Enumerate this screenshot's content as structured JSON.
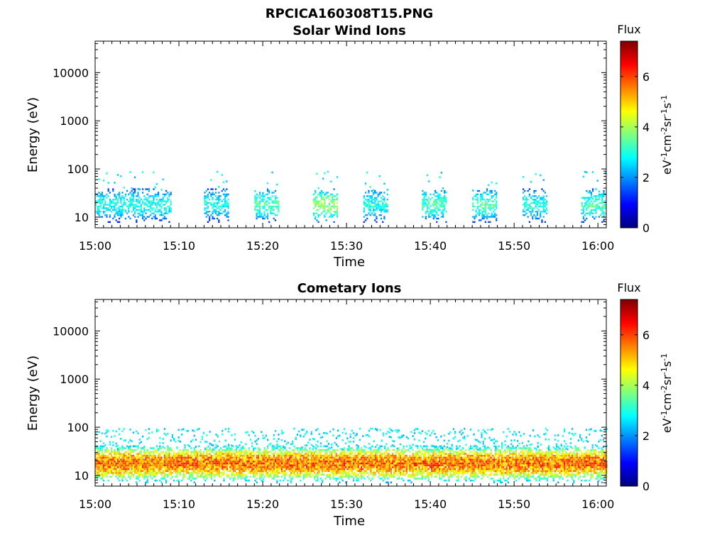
{
  "figure": {
    "title": "RPCICA160308T15.PNG"
  },
  "colormap": {
    "name": "jet",
    "stops": [
      "#00007f",
      "#0000ff",
      "#007fff",
      "#00ffff",
      "#7fff7f",
      "#ffff00",
      "#ff7f00",
      "#ff0000",
      "#7f0000"
    ]
  },
  "chart_data": [
    {
      "type": "heatmap",
      "title": "Solar Wind Ions",
      "xlabel": "Time",
      "ylabel": "Energy (eV)",
      "y_scale": "log",
      "xlim": [
        "15:00",
        "16:01"
      ],
      "ylim": [
        6,
        45000
      ],
      "x_ticks": [
        "15:00",
        "15:10",
        "15:20",
        "15:30",
        "15:40",
        "15:50",
        "16:00"
      ],
      "y_ticks": [
        {
          "value": 10,
          "label": "10"
        },
        {
          "value": 100,
          "label": "100"
        },
        {
          "value": 1000,
          "label": "1000"
        },
        {
          "value": 10000,
          "label": "10000"
        }
      ],
      "colorbar": {
        "title": "Flux",
        "unit_label": "eV-1cm-2sr-1s-1",
        "range": [
          0,
          7.4
        ],
        "ticks": [
          0,
          2,
          4,
          6
        ]
      },
      "bursts": [
        {
          "start": "15:00",
          "end": "15:09",
          "energy_range": [
            10,
            30
          ],
          "peak_flux": 3.4
        },
        {
          "start": "15:13",
          "end": "15:16",
          "energy_range": [
            10,
            30
          ],
          "peak_flux": 3.3
        },
        {
          "start": "15:19",
          "end": "15:22",
          "energy_range": [
            10,
            30
          ],
          "peak_flux": 3.8
        },
        {
          "start": "15:26",
          "end": "15:29",
          "energy_range": [
            10,
            30
          ],
          "peak_flux": 4.4
        },
        {
          "start": "15:32",
          "end": "15:35",
          "energy_range": [
            10,
            30
          ],
          "peak_flux": 3.4
        },
        {
          "start": "15:39",
          "end": "15:42",
          "energy_range": [
            10,
            30
          ],
          "peak_flux": 3.8
        },
        {
          "start": "15:45",
          "end": "15:48",
          "energy_range": [
            10,
            30
          ],
          "peak_flux": 3.8
        },
        {
          "start": "15:51",
          "end": "15:54",
          "energy_range": [
            10,
            30
          ],
          "peak_flux": 3.4
        },
        {
          "start": "15:58",
          "end": "16:01",
          "energy_range": [
            10,
            30
          ],
          "peak_flux": 3.8
        }
      ]
    },
    {
      "type": "heatmap",
      "title": "Cometary Ions",
      "xlabel": "Time",
      "ylabel": "Energy (eV)",
      "y_scale": "log",
      "xlim": [
        "15:00",
        "16:01"
      ],
      "ylim": [
        6,
        45000
      ],
      "x_ticks": [
        "15:00",
        "15:10",
        "15:20",
        "15:30",
        "15:40",
        "15:50",
        "16:00"
      ],
      "y_ticks": [
        {
          "value": 10,
          "label": "10"
        },
        {
          "value": 100,
          "label": "100"
        },
        {
          "value": 1000,
          "label": "1000"
        },
        {
          "value": 10000,
          "label": "10000"
        }
      ],
      "colorbar": {
        "title": "Flux",
        "unit_label": "eV-1cm-2sr-1s-1",
        "range": [
          0,
          7.4
        ],
        "ticks": [
          0,
          2,
          4,
          6
        ]
      },
      "bursts": [
        {
          "start": "15:00",
          "end": "16:01",
          "energy_range": [
            9,
            32
          ],
          "peak_flux": 6.5
        }
      ]
    }
  ]
}
